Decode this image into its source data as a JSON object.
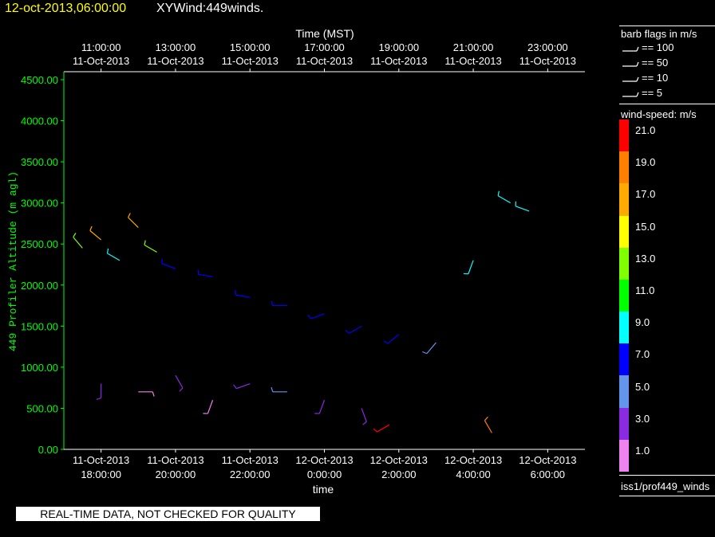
{
  "header": {
    "date_text": "12-oct-2013,06:00:00",
    "plot_name": "XYWind:449winds."
  },
  "qc_banner": "REAL-TIME DATA, NOT CHECKED FOR QUALITY",
  "source_label": "iss1/prof449_winds",
  "legend": {
    "barb_title": "barb flags in m/s",
    "barbs": [
      {
        "label": "== 100",
        "value": 100
      },
      {
        "label": "== 50",
        "value": 50
      },
      {
        "label": "== 10",
        "value": 10
      },
      {
        "label": "== 5",
        "value": 5
      }
    ],
    "speed_title": "wind-speed: m/s",
    "speed_bins": [
      {
        "label": "21.0",
        "color": "#ff0000"
      },
      {
        "label": "19.0",
        "color": "#ff8000"
      },
      {
        "label": "17.0",
        "color": "#ffaa00"
      },
      {
        "label": "15.0",
        "color": "#ffff00"
      },
      {
        "label": "13.0",
        "color": "#80ff00"
      },
      {
        "label": "11.0",
        "color": "#00ff00"
      },
      {
        "label": "9.0",
        "color": "#00ffff"
      },
      {
        "label": "7.0",
        "color": "#0000ff"
      },
      {
        "label": "5.0",
        "color": "#6495ed"
      },
      {
        "label": "3.0",
        "color": "#8a2be2"
      },
      {
        "label": "1.0",
        "color": "#ee82ee"
      }
    ]
  },
  "chart_data": {
    "type": "scatter",
    "title": "XYWind:449winds.",
    "xlabel": "time",
    "x2label": "Time (MST)",
    "ylabel": "449 Profiler Altitude (m agl)",
    "ylim": [
      0,
      4500
    ],
    "xlim": [
      "11-Oct-2013 17:00",
      "12-Oct-2013 07:00"
    ],
    "y_ticks": [
      "0.00",
      "500.00",
      "1000.00",
      "1500.00",
      "2000.00",
      "2500.00",
      "3000.00",
      "3500.00",
      "4000.00",
      "4500.00"
    ],
    "x_ticks_bottom": [
      {
        "date": "11-Oct-2013",
        "time": "18:00:00"
      },
      {
        "date": "11-Oct-2013",
        "time": "20:00:00"
      },
      {
        "date": "11-Oct-2013",
        "time": "22:00:00"
      },
      {
        "date": "12-Oct-2013",
        "time": "0:00:00"
      },
      {
        "date": "12-Oct-2013",
        "time": "2:00:00"
      },
      {
        "date": "12-Oct-2013",
        "time": "4:00:00"
      },
      {
        "date": "12-Oct-2013",
        "time": "6:00:00"
      }
    ],
    "x_ticks_top": [
      {
        "time": "11:00:00",
        "date": "11-Oct-2013"
      },
      {
        "time": "13:00:00",
        "date": "11-Oct-2013"
      },
      {
        "time": "15:00:00",
        "date": "11-Oct-2013"
      },
      {
        "time": "17:00:00",
        "date": "11-Oct-2013"
      },
      {
        "time": "19:00:00",
        "date": "11-Oct-2013"
      },
      {
        "time": "21:00:00",
        "date": "11-Oct-2013"
      },
      {
        "time": "23:00:00",
        "date": "11-Oct-2013"
      }
    ],
    "axis_color": "#00ff00",
    "grid": false,
    "legend_position": "right",
    "series": [
      {
        "values": [
          {
            "time": "11-Oct-2013 17:30",
            "alt": 2450,
            "speed": 13,
            "dir": 320
          },
          {
            "time": "11-Oct-2013 18:00",
            "alt": 2550,
            "speed": 17,
            "dir": 310
          },
          {
            "time": "11-Oct-2013 18:30",
            "alt": 2300,
            "speed": 9,
            "dir": 300
          },
          {
            "time": "11-Oct-2013 19:00",
            "alt": 2700,
            "speed": 17,
            "dir": 315
          },
          {
            "time": "11-Oct-2013 19:30",
            "alt": 2400,
            "speed": 13,
            "dir": 300
          },
          {
            "time": "11-Oct-2013 20:00",
            "alt": 2200,
            "speed": 7,
            "dir": 290
          },
          {
            "time": "11-Oct-2013 21:00",
            "alt": 2100,
            "speed": 7,
            "dir": 280
          },
          {
            "time": "11-Oct-2013 22:00",
            "alt": 1850,
            "speed": 7,
            "dir": 280
          },
          {
            "time": "11-Oct-2013 23:00",
            "alt": 1750,
            "speed": 7,
            "dir": 270
          },
          {
            "time": "12-Oct-2013 00:00",
            "alt": 1650,
            "speed": 7,
            "dir": 250
          },
          {
            "time": "12-Oct-2013 01:00",
            "alt": 1500,
            "speed": 7,
            "dir": 240
          },
          {
            "time": "12-Oct-2013 02:00",
            "alt": 1400,
            "speed": 7,
            "dir": 230
          },
          {
            "time": "12-Oct-2013 03:00",
            "alt": 1300,
            "speed": 5,
            "dir": 220
          },
          {
            "time": "12-Oct-2013 04:00",
            "alt": 2300,
            "speed": 9,
            "dir": 200
          },
          {
            "time": "12-Oct-2013 05:00",
            "alt": 3000,
            "speed": 9,
            "dir": 300
          },
          {
            "time": "12-Oct-2013 05:30",
            "alt": 2900,
            "speed": 9,
            "dir": 290
          },
          {
            "time": "11-Oct-2013 18:00",
            "alt": 800,
            "speed": 3,
            "dir": 180
          },
          {
            "time": "11-Oct-2013 19:00",
            "alt": 700,
            "speed": 1,
            "dir": 90
          },
          {
            "time": "11-Oct-2013 20:00",
            "alt": 900,
            "speed": 3,
            "dir": 150
          },
          {
            "time": "11-Oct-2013 21:00",
            "alt": 600,
            "speed": 1,
            "dir": 200
          },
          {
            "time": "11-Oct-2013 22:00",
            "alt": 800,
            "speed": 3,
            "dir": 250
          },
          {
            "time": "11-Oct-2013 23:00",
            "alt": 700,
            "speed": 5,
            "dir": 270
          },
          {
            "time": "12-Oct-2013 00:00",
            "alt": 600,
            "speed": 3,
            "dir": 200
          },
          {
            "time": "12-Oct-2013 01:00",
            "alt": 500,
            "speed": 3,
            "dir": 160
          },
          {
            "time": "12-Oct-2013 01:45",
            "alt": 300,
            "speed": 21,
            "dir": 240
          },
          {
            "time": "12-Oct-2013 04:30",
            "alt": 200,
            "speed": 19,
            "dir": 330
          }
        ]
      }
    ]
  }
}
